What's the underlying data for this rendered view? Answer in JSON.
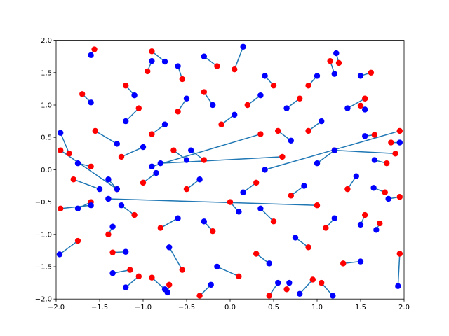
{
  "chart_data": {
    "type": "scatter",
    "xlim": [
      -2,
      2
    ],
    "ylim": [
      -2,
      2
    ],
    "xticks": [
      {
        "value": -2,
        "label": "−2.0"
      },
      {
        "value": -1.5,
        "label": "−1.5"
      },
      {
        "value": -1,
        "label": "−1.0"
      },
      {
        "value": -0.5,
        "label": "−0.5"
      },
      {
        "value": 0,
        "label": "0.0"
      },
      {
        "value": 0.5,
        "label": "0.5"
      },
      {
        "value": 1,
        "label": "1.0"
      },
      {
        "value": 1.5,
        "label": "1.5"
      },
      {
        "value": 2,
        "label": "2.0"
      }
    ],
    "yticks": [
      {
        "value": -2,
        "label": "−2.0"
      },
      {
        "value": -1.5,
        "label": "−1.5"
      },
      {
        "value": -1,
        "label": "−1.0"
      },
      {
        "value": -0.5,
        "label": "−0.5"
      },
      {
        "value": 0,
        "label": "0.0"
      },
      {
        "value": 0.5,
        "label": "0.5"
      },
      {
        "value": 1,
        "label": "1.0"
      },
      {
        "value": 1.5,
        "label": "1.5"
      },
      {
        "value": 2,
        "label": "2.0"
      }
    ],
    "line_color": "#1f77b4",
    "series": [
      {
        "color": "red",
        "x": [
          -1.56,
          -1.7,
          -0.9,
          -0.95,
          1.25,
          1.15,
          1.62,
          1.55,
          1.5,
          1.66,
          1.85,
          1.8,
          1.78,
          1.95,
          1.55,
          1.72,
          1.3,
          1.05,
          1.95,
          -1.75,
          -1.4,
          -1.35,
          -1.15,
          -1.05,
          -0.9,
          -0.7,
          -0.35,
          0.45,
          0.65,
          0.1,
          0.95,
          -0.55,
          0.3,
          0.9,
          1.1,
          0.5,
          -0.2,
          -0.8,
          -1.1,
          -1.6,
          -1.95,
          -1.8,
          -1.6,
          -1.85,
          -1.55,
          -1.25,
          -0.9,
          -0.6,
          -0.3,
          -0.1,
          0.2,
          0.5,
          0.8,
          0.9,
          1.2,
          0.6,
          1.95,
          1.9,
          0.3,
          -0.3,
          0,
          -0.5,
          -1,
          -1.3,
          0.7,
          1.35,
          -0.15,
          0.05,
          -0.55,
          0.9,
          -1.2,
          -1.05,
          0.55,
          -0.65,
          1,
          -1.95,
          0.35
        ],
        "values": [
          1.86,
          1.17,
          1.83,
          1.52,
          1.65,
          1.68,
          1.5,
          1.1,
          0.99,
          0.54,
          0.42,
          0.1,
          -0.35,
          -0.42,
          -0.7,
          -0.83,
          -1.45,
          -1.75,
          -1.3,
          -1.1,
          -1,
          -1.28,
          -1.55,
          -1.65,
          -1.67,
          -1.78,
          -1.95,
          -1.95,
          -1.85,
          -1.65,
          -1.7,
          -1.55,
          -1.3,
          -1.2,
          -0.9,
          -0.8,
          -0.95,
          -0.9,
          -0.7,
          -0.5,
          -0.6,
          -0.15,
          0.05,
          0.25,
          0.6,
          0.2,
          0.55,
          0.9,
          1.2,
          0.7,
          1,
          1.3,
          1.1,
          0.6,
          0.3,
          0.2,
          0.6,
          0.25,
          -0.2,
          0.15,
          -0.5,
          -0.3,
          -0.2,
          -0.3,
          -0.4,
          -0.3,
          1.6,
          1.55,
          1.4,
          1.3,
          1.3,
          0.95,
          0.6,
          0.3,
          -0.55,
          0.3,
          0.55
        ]
      },
      {
        "color": "blue",
        "x": [
          -1.6,
          -1.6,
          -0.75,
          -0.9,
          1.22,
          1.2,
          1.5,
          1.35,
          1.55,
          1.55,
          1.95,
          1.66,
          1.65,
          1.82,
          1.5,
          1.68,
          1.5,
          1.18,
          1.93,
          -1.96,
          -1.35,
          -1.2,
          -1.35,
          -1.2,
          -0.75,
          -0.72,
          -0.22,
          0.55,
          0.68,
          -0.15,
          0.8,
          -0.7,
          0.45,
          0.75,
          1.2,
          0.35,
          -0.3,
          -0.6,
          -1.25,
          -1.75,
          -1.6,
          -1.5,
          -1.75,
          -1.95,
          -1.3,
          -1,
          -0.75,
          -0.5,
          -0.2,
          0.05,
          0.35,
          0.4,
          0.65,
          1.05,
          1,
          -0.8,
          0.4,
          1.2,
          0.15,
          -0.45,
          0.1,
          -0.35,
          -0.85,
          -1.4,
          0.85,
          1.45,
          -0.3,
          0.15,
          -0.6,
          1,
          -1.1,
          -1.2,
          0.7,
          -0.5,
          -1.4,
          -1.3,
          -0.9
        ],
        "values": [
          1.77,
          1.04,
          1.67,
          1.68,
          1.8,
          1.48,
          1.45,
          0.95,
          0.93,
          0.52,
          0.42,
          0.15,
          -0.28,
          -0.45,
          -0.85,
          -0.93,
          -1.42,
          -1.95,
          -1.8,
          -1.31,
          -0.88,
          -1.27,
          -1.6,
          -1.82,
          -1.85,
          -1.9,
          -1.78,
          -1.75,
          -1.75,
          -1.5,
          -1.92,
          -1.2,
          -1.45,
          -1.05,
          -0.75,
          -0.6,
          -0.8,
          -0.75,
          -0.55,
          -0.6,
          -0.55,
          -0.3,
          0.1,
          0.57,
          0.4,
          0.35,
          0.7,
          1.1,
          1,
          0.85,
          1.15,
          1.45,
          0.95,
          0.75,
          0.1,
          0.1,
          0,
          0.3,
          -0.35,
          0.3,
          -0.65,
          -0.15,
          -0.05,
          -0.15,
          -0.25,
          -0.1,
          1.75,
          1.9,
          1.6,
          1.45,
          1.15,
          0.75,
          0.45,
          0.15,
          -0.45,
          -0.3,
          0.05
        ]
      }
    ]
  }
}
